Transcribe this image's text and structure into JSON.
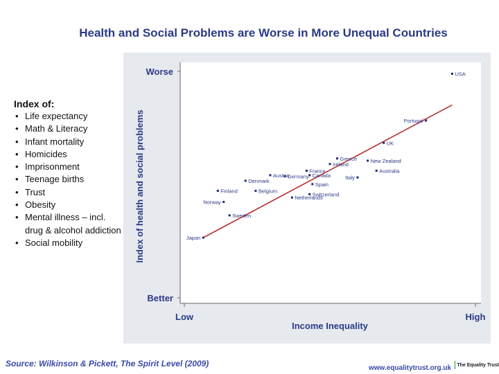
{
  "page": {
    "title": "Health and Social Problems are Worse in More Unequal Countries",
    "index_heading": "Index of:",
    "index_items": [
      "Life expectancy",
      "Math & Literacy",
      "Infant mortality",
      "Homicides",
      "Imprisonment",
      "Teenage births",
      "Trust",
      "Obesity",
      "Mental illness – incl. drug & alcohol addiction",
      "Social mobility"
    ],
    "source": "Source: Wilkinson & Pickett, The Spirit Level (2009)",
    "website": "www.equalitytrust.org.uk",
    "logo_text": "The Equality Trust"
  },
  "chart_data": {
    "type": "scatter",
    "title": "",
    "xlabel": "Income Inequality",
    "ylabel": "Index of health and social problems",
    "xticks": [
      "Low",
      "High"
    ],
    "yticks": [
      "Worse",
      "Better"
    ],
    "xlim": [
      0,
      1
    ],
    "ylim": [
      0,
      1
    ],
    "grid": false,
    "points": [
      {
        "label": "USA",
        "x": 0.92,
        "y": 0.98
      },
      {
        "label": "Portugal",
        "x": 0.83,
        "y": 0.77
      },
      {
        "label": "UK",
        "x": 0.685,
        "y": 0.67
      },
      {
        "label": "New Zealand",
        "x": 0.63,
        "y": 0.59
      },
      {
        "label": "Greece",
        "x": 0.525,
        "y": 0.6
      },
      {
        "label": "Ireland",
        "x": 0.5,
        "y": 0.575
      },
      {
        "label": "Australia",
        "x": 0.66,
        "y": 0.545
      },
      {
        "label": "Italy",
        "x": 0.595,
        "y": 0.515
      },
      {
        "label": "France",
        "x": 0.42,
        "y": 0.545
      },
      {
        "label": "Canada",
        "x": 0.43,
        "y": 0.525
      },
      {
        "label": "Spain",
        "x": 0.44,
        "y": 0.485
      },
      {
        "label": "Austria",
        "x": 0.295,
        "y": 0.525
      },
      {
        "label": "Germany",
        "x": 0.345,
        "y": 0.52
      },
      {
        "label": "Denmark",
        "x": 0.21,
        "y": 0.5
      },
      {
        "label": "Belgium",
        "x": 0.245,
        "y": 0.455
      },
      {
        "label": "Switzerland",
        "x": 0.43,
        "y": 0.44
      },
      {
        "label": "Netherlands",
        "x": 0.37,
        "y": 0.425
      },
      {
        "label": "Finland",
        "x": 0.115,
        "y": 0.455
      },
      {
        "label": "Norway",
        "x": 0.135,
        "y": 0.405
      },
      {
        "label": "Sweden",
        "x": 0.155,
        "y": 0.345
      },
      {
        "label": "Japan",
        "x": 0.065,
        "y": 0.245
      }
    ],
    "trendline": {
      "x": [
        0.065,
        0.92
      ],
      "y": [
        0.245,
        0.84
      ]
    },
    "colors": {
      "panel": "#e6e9ee",
      "plot_area": "#ffffff",
      "trendline": "#b8312f",
      "point": "#1f2a6e",
      "text": "#2b3a86"
    }
  }
}
